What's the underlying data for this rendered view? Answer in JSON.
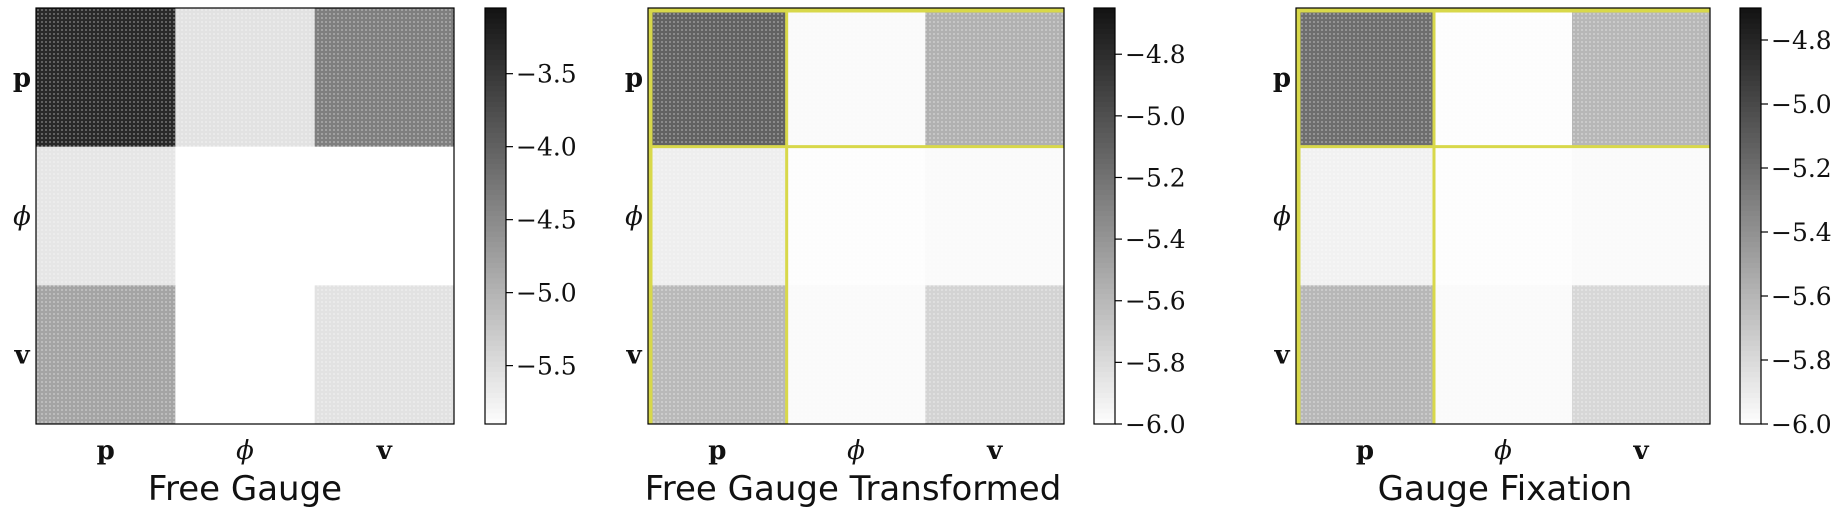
{
  "chart_data": [
    {
      "type": "heatmap",
      "title": "Free Gauge",
      "row_labels": [
        "p",
        "ϕ",
        "v"
      ],
      "col_labels": [
        "p",
        "ϕ",
        "v"
      ],
      "values": [
        [
          -3.3,
          -5.55,
          -4.35
        ],
        [
          -5.6,
          -5.9,
          -5.9
        ],
        [
          -4.8,
          -5.92,
          -5.55
        ]
      ],
      "colorbar": {
        "min": -5.9,
        "max": -3.05,
        "ticks": [
          -3.5,
          -4.0,
          -4.5,
          -5.0,
          -5.5
        ],
        "tick_labels": [
          "−3.5",
          "−4.0",
          "−4.5",
          "−5.0",
          "−5.5"
        ]
      },
      "highlight": false,
      "highlight_color": "#d8d84a",
      "colormap": "Greys"
    },
    {
      "type": "heatmap",
      "title": "Free Gauge Transformed",
      "row_labels": [
        "p",
        "ϕ",
        "v"
      ],
      "col_labels": [
        "p",
        "ϕ",
        "v"
      ],
      "values": [
        [
          -5.1,
          -5.97,
          -5.55
        ],
        [
          -5.9,
          -5.99,
          -5.97
        ],
        [
          -5.6,
          -5.97,
          -5.75
        ]
      ],
      "colorbar": {
        "min": -6.0,
        "max": -4.65,
        "ticks": [
          -4.8,
          -5.0,
          -5.2,
          -5.4,
          -5.6,
          -5.8,
          -6.0
        ],
        "tick_labels": [
          "−4.8",
          "−5.0",
          "−5.2",
          "−5.4",
          "−5.6",
          "−5.8",
          "−6.0"
        ]
      },
      "highlight": true,
      "highlight_color": "#d8d84a",
      "colormap": "Greys"
    },
    {
      "type": "heatmap",
      "title": "Gauge Fixation",
      "row_labels": [
        "p",
        "ϕ",
        "v"
      ],
      "col_labels": [
        "p",
        "ϕ",
        "v"
      ],
      "values": [
        [
          -5.2,
          -5.99,
          -5.6
        ],
        [
          -5.92,
          -5.99,
          -5.97
        ],
        [
          -5.6,
          -5.97,
          -5.78
        ]
      ],
      "colorbar": {
        "min": -6.0,
        "max": -4.7,
        "ticks": [
          -4.8,
          -5.0,
          -5.2,
          -5.4,
          -5.6,
          -5.8,
          -6.0
        ],
        "tick_labels": [
          "−4.8",
          "−5.0",
          "−5.2",
          "−5.4",
          "−5.6",
          "−5.8",
          "−6.0"
        ]
      },
      "highlight": true,
      "highlight_color": "#d8d84a",
      "colormap": "Greys"
    }
  ]
}
